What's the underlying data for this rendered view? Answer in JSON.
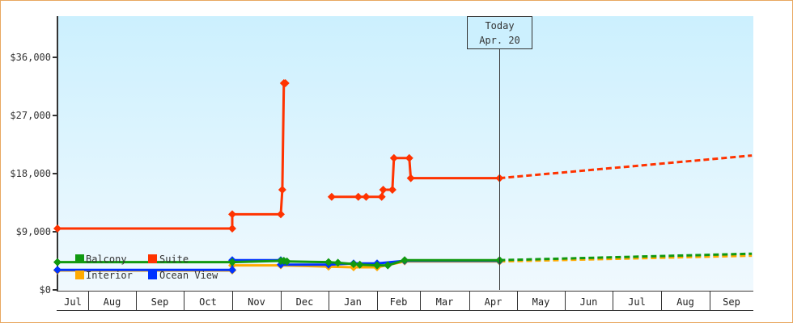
{
  "chart_data": {
    "type": "line",
    "title": "",
    "xlabel": "",
    "ylabel": "",
    "ylim": [
      0,
      42000
    ],
    "y_ticks": [
      "$0",
      "$9,000",
      "$18,000",
      "$27,000",
      "$36,000"
    ],
    "y_tick_values": [
      0,
      9000,
      18000,
      27000,
      36000
    ],
    "x_ticks": [
      "Jul",
      "Aug",
      "Sep",
      "Oct",
      "Nov",
      "Dec",
      "Jan",
      "Feb",
      "Mar",
      "Apr",
      "May",
      "Jun",
      "Jul",
      "Aug",
      "Sep"
    ],
    "grid": false,
    "legend_position": "inside-bottom-left",
    "annotation": {
      "line1": "Today",
      "line2": "Apr. 20"
    },
    "series": [
      {
        "name": "Balcony",
        "color": "#119911",
        "points": [
          [
            "Jul 1",
            4300
          ],
          [
            "Nov 1",
            4300
          ],
          [
            "Dec 1",
            4500
          ],
          [
            "Dec 3",
            4500
          ],
          [
            "Dec 5",
            4400
          ],
          [
            "Jan 1",
            4300
          ],
          [
            "Jan 7",
            4200
          ],
          [
            "Jan 17",
            4000
          ],
          [
            "Jan 21",
            3900
          ],
          [
            "Feb 1",
            3800
          ],
          [
            "Feb 8",
            3800
          ],
          [
            "Feb 19",
            4600
          ],
          [
            "Apr 20",
            4600
          ]
        ],
        "forecast": [
          [
            "Apr 20",
            4600
          ],
          [
            "Sep 30",
            5600
          ]
        ]
      },
      {
        "name": "Suite",
        "color": "#ff3300",
        "points": [
          [
            "Jul 1",
            9500
          ],
          [
            "Nov 1",
            9500
          ],
          [
            "Nov 1",
            11700
          ],
          [
            "Dec 1",
            11700
          ],
          [
            "Dec 2",
            15500
          ],
          [
            "Dec 3",
            32000
          ],
          [
            "Dec 4",
            32000
          ]
        ],
        "points_segment2": [
          [
            "Jan 3",
            14400
          ],
          [
            "Jan 20",
            14400
          ],
          [
            "Jan 25",
            14400
          ],
          [
            "Feb 4",
            14400
          ],
          [
            "Feb 5",
            15500
          ],
          [
            "Feb 11",
            15500
          ],
          [
            "Feb 12",
            20400
          ],
          [
            "Feb 22",
            20400
          ],
          [
            "Feb 23",
            17300
          ],
          [
            "Apr 20",
            17300
          ]
        ],
        "forecast": [
          [
            "Apr 20",
            17300
          ],
          [
            "Sep 30",
            20800
          ]
        ]
      },
      {
        "name": "Interior",
        "color": "#ffaa00",
        "points": [
          [
            "Jul 1",
            3000
          ],
          [
            "Nov 1",
            3000
          ],
          [
            "Nov 1",
            3800
          ],
          [
            "Dec 1",
            3800
          ],
          [
            "Jan 1",
            3600
          ],
          [
            "Jan 17",
            3500
          ],
          [
            "Feb 1",
            3500
          ],
          [
            "Feb 19",
            4400
          ],
          [
            "Apr 20",
            4400
          ]
        ],
        "forecast": [
          [
            "Apr 20",
            4400
          ],
          [
            "Sep 30",
            5300
          ]
        ]
      },
      {
        "name": "Ocean View",
        "color": "#0033ff",
        "points": [
          [
            "Jul 1",
            3100
          ],
          [
            "Nov 1",
            3100
          ],
          [
            "Nov 1",
            4600
          ],
          [
            "Dec 1",
            4600
          ],
          [
            "Dec 1",
            3900
          ],
          [
            "Jan 1",
            3900
          ],
          [
            "Jan 17",
            4100
          ],
          [
            "Feb 1",
            4100
          ],
          [
            "Feb 19",
            4500
          ],
          [
            "Apr 20",
            4500
          ]
        ]
      }
    ]
  },
  "legend": {
    "items": [
      {
        "label": "Balcony",
        "color": "#119911"
      },
      {
        "label": "Suite",
        "color": "#ff3300"
      },
      {
        "label": "Interior",
        "color": "#ffaa00"
      },
      {
        "label": "Ocean View",
        "color": "#0033ff"
      }
    ]
  }
}
